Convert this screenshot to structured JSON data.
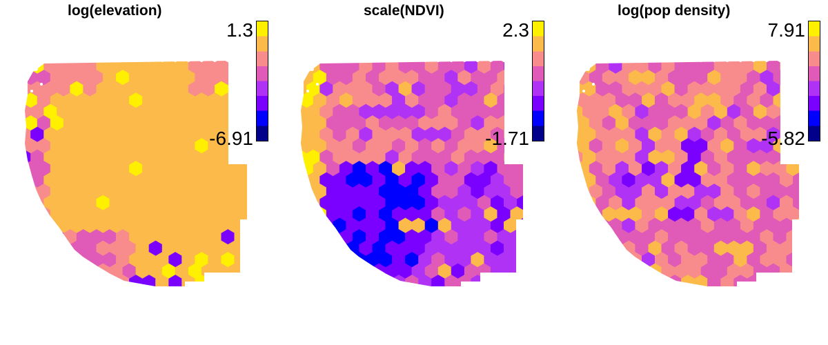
{
  "figure": {
    "panels": [
      {
        "title": "log(elevation)",
        "legend": {
          "max": "1.3",
          "min": "-6.91"
        },
        "scheme": "elevation",
        "colors": [
          "#00008B",
          "#0000FF",
          "#7A00FF",
          "#B033F5",
          "#E05AB8",
          "#F88C8C",
          "#FBBA4A",
          "#FFF000"
        ]
      },
      {
        "title": "scale(NDVI)",
        "legend": {
          "max": "2.3",
          "min": "-1.71"
        },
        "scheme": "ndvi",
        "colors": [
          "#00008B",
          "#0000FF",
          "#7A00FF",
          "#B033F5",
          "#E05AB8",
          "#F88C8C",
          "#FBBA4A",
          "#FFF000"
        ]
      },
      {
        "title": "log(pop density)",
        "legend": {
          "max": "7.91",
          "min": "-5.82"
        },
        "scheme": "pop",
        "colors": [
          "#00008B",
          "#0000FF",
          "#7A00FF",
          "#B033F5",
          "#E05AB8",
          "#F88C8C",
          "#FBBA4A",
          "#FFF000"
        ]
      }
    ]
  }
}
